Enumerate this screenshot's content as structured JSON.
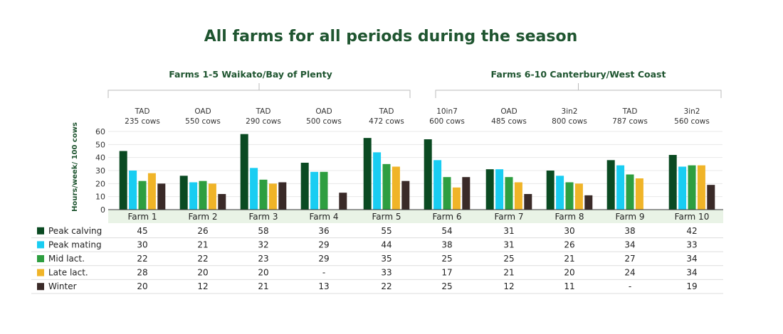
{
  "chart_data": {
    "type": "bar",
    "title": "All farms for all periods during the season",
    "ylabel": "Hours/week/ 100 cows",
    "ylim": [
      0,
      60
    ],
    "yticks": [
      0,
      10,
      20,
      30,
      40,
      50,
      60
    ],
    "grid": true,
    "legend": "table-left",
    "groups": [
      {
        "label": "Farms 1-5 Waikato/Bay of Plenty",
        "farms": [
          0,
          4
        ]
      },
      {
        "label": "Farms 6-10 Canterbury/West Coast",
        "farms": [
          5,
          9
        ]
      }
    ],
    "categories": [
      "Farm 1",
      "Farm 2",
      "Farm 3",
      "Farm 4",
      "Farm 5",
      "Farm 6",
      "Farm 7",
      "Farm 8",
      "Farm 9",
      "Farm 10"
    ],
    "farm_types": [
      [
        "TAD",
        "235 cows"
      ],
      [
        "OAD",
        "550 cows"
      ],
      [
        "TAD",
        "290 cows"
      ],
      [
        "OAD",
        "500 cows"
      ],
      [
        "TAD",
        "472 cows"
      ],
      [
        "10in7",
        "600 cows"
      ],
      [
        "OAD",
        "485 cows"
      ],
      [
        "3in2",
        "800 cows"
      ],
      [
        "TAD",
        "787 cows"
      ],
      [
        "3in2",
        "560 cows"
      ]
    ],
    "series": [
      {
        "name": "Peak calving",
        "color": "#0a4a22",
        "values": [
          45,
          26,
          58,
          36,
          55,
          54,
          31,
          30,
          38,
          42
        ]
      },
      {
        "name": "Peak mating",
        "color": "#19cdf2",
        "values": [
          30,
          21,
          32,
          29,
          44,
          38,
          31,
          26,
          34,
          33
        ]
      },
      {
        "name": "Mid lact.",
        "color": "#2e9e40",
        "values": [
          22,
          22,
          23,
          29,
          35,
          25,
          25,
          21,
          27,
          34
        ]
      },
      {
        "name": "Late lact.",
        "color": "#f0b428",
        "values": [
          28,
          20,
          20,
          null,
          33,
          17,
          21,
          20,
          24,
          34
        ]
      },
      {
        "name": "Winter",
        "color": "#3a2a28",
        "values": [
          20,
          12,
          21,
          13,
          22,
          25,
          12,
          11,
          null,
          19
        ]
      }
    ],
    "missing_text": "-"
  }
}
